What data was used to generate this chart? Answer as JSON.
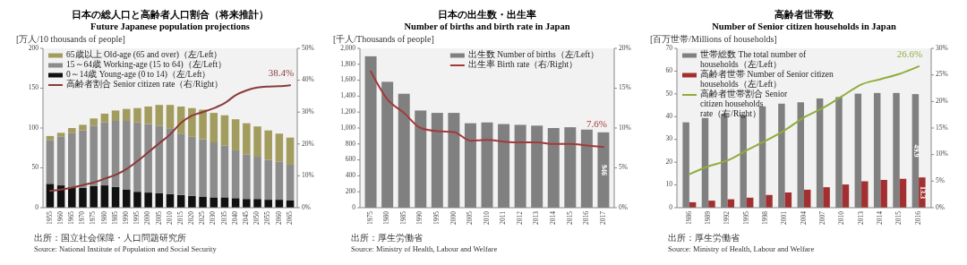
{
  "chart_data": [
    {
      "type": "bar",
      "title": "日本の総人口と高齢者人口割合（将来推計）",
      "subtitle": "Future Japanese population projections",
      "ylabel": "[万人/10 thousands of people]",
      "categories": [
        "1955",
        "1960",
        "1965",
        "1970",
        "1975",
        "1980",
        "1985",
        "1990",
        "1995",
        "2000",
        "2005",
        "2010",
        "2015",
        "2020",
        "2025",
        "2030",
        "2035",
        "2040",
        "2045",
        "2050",
        "2055",
        "2060",
        "2065"
      ],
      "stacked": true,
      "legend": "top left",
      "series": [
        {
          "name": "0～14歳 Young-age (0 to 14)（左/Left）",
          "color": "#111111",
          "values": [
            30,
            28,
            26,
            25,
            27,
            28,
            26,
            23,
            20,
            19,
            18,
            17,
            16,
            15,
            14,
            13,
            13,
            12,
            11,
            11,
            10,
            10,
            9
          ]
        },
        {
          "name": "15～64歳 Working-age (15 to 64)（左/Left）",
          "color": "#8c8c8c",
          "values": [
            55,
            61,
            68,
            72,
            76,
            79,
            83,
            86,
            87,
            86,
            85,
            82,
            77,
            74,
            72,
            69,
            65,
            60,
            56,
            53,
            50,
            48,
            45
          ]
        },
        {
          "name": "65歳以上 Old-age (65 and over)（左/Left）",
          "color": "#a39c5f",
          "values": [
            5,
            5,
            6,
            7,
            9,
            11,
            13,
            15,
            18,
            22,
            26,
            30,
            34,
            36,
            37,
            37,
            38,
            39,
            39,
            38,
            37,
            35,
            34
          ]
        },
        {
          "name": "高齢者割合 Senior citizen rate（右/Right）",
          "type": "line",
          "axis": "y2",
          "color": "#8b3a3a",
          "values": [
            5.3,
            5.7,
            6.3,
            7.1,
            7.9,
            9.1,
            10.3,
            12.1,
            14.6,
            17.4,
            20.2,
            23.0,
            26.6,
            28.9,
            30.0,
            31.2,
            32.8,
            35.3,
            36.8,
            37.7,
            38.0,
            38.1,
            38.4
          ],
          "value_labels": [
            null,
            null,
            null,
            null,
            null,
            null,
            null,
            null,
            null,
            null,
            null,
            null,
            null,
            null,
            null,
            null,
            null,
            null,
            null,
            null,
            null,
            null,
            "38.4%"
          ]
        }
      ],
      "ylim": [
        0,
        200
      ],
      "yticks": [
        0,
        50,
        100,
        150,
        200
      ],
      "y2lim": [
        0,
        50
      ],
      "y2ticks": [
        {
          "value": 0,
          "label": "0%"
        },
        {
          "value": 10,
          "label": "10%"
        },
        {
          "value": 20,
          "label": "20%"
        },
        {
          "value": 30,
          "label": "30%"
        },
        {
          "value": 40,
          "label": "40%"
        },
        {
          "value": 50,
          "label": "50%"
        }
      ],
      "annotations": [
        "出所：国立社会保障・人口問題研究所",
        "Source: National Institute of Population and Social Security"
      ]
    },
    {
      "type": "bar",
      "title": "日本の出生数・出生率",
      "subtitle": "Number of births and birth rate in Japan",
      "ylabel": "[千人/Thousands of people]",
      "categories": [
        "1975",
        "1980",
        "1985",
        "1990",
        "1995",
        "2000",
        "2005",
        "2010",
        "2011",
        "2012",
        "2013",
        "2014",
        "2015",
        "2016",
        "2017"
      ],
      "legend": "top right",
      "series": [
        {
          "name": "出生数 Number of births（左/Left）",
          "color": "#808080",
          "values": [
            1900,
            1580,
            1430,
            1220,
            1190,
            1190,
            1060,
            1070,
            1050,
            1040,
            1030,
            1000,
            1010,
            980,
            946
          ],
          "value_labels": [
            null,
            null,
            null,
            null,
            null,
            null,
            null,
            null,
            null,
            null,
            null,
            null,
            null,
            null,
            "946"
          ]
        },
        {
          "name": "出生率 Birth rate（右/Right）",
          "type": "line",
          "axis": "y2",
          "color": "#a33a3a",
          "values": [
            17.1,
            13.6,
            11.9,
            10.0,
            9.6,
            9.5,
            8.4,
            8.5,
            8.3,
            8.2,
            8.2,
            8.0,
            8.0,
            7.8,
            7.6
          ],
          "value_labels": [
            null,
            null,
            null,
            null,
            null,
            null,
            null,
            null,
            null,
            null,
            null,
            null,
            null,
            null,
            "7.6%"
          ]
        }
      ],
      "ylim": [
        0,
        2000
      ],
      "yticks": [
        0,
        200,
        400,
        600,
        800,
        {
          "value": 1000,
          "label": "1,000"
        },
        {
          "value": 1200,
          "label": "1,200"
        },
        {
          "value": 1400,
          "label": "1,400"
        },
        {
          "value": 1600,
          "label": "1,600"
        },
        {
          "value": 1800,
          "label": "1,800"
        },
        {
          "value": 2000,
          "label": "2,000"
        }
      ],
      "y2lim": [
        0,
        20
      ],
      "y2ticks": [
        {
          "value": 0,
          "label": "0%"
        },
        {
          "value": 5,
          "label": "5%"
        },
        {
          "value": 10,
          "label": "10%"
        },
        {
          "value": 15,
          "label": "15%"
        },
        {
          "value": 20,
          "label": "20%"
        }
      ],
      "annotations": [
        "出所：厚生労働省",
        "Source: Ministry of Health, Labour and Welfare"
      ]
    },
    {
      "type": "bar",
      "title": "高齢者世帯数",
      "subtitle": "Number of Senior citizen households in Japan",
      "ylabel": "[百万世帯/Millions of households]",
      "categories": [
        "1986",
        "1989",
        "1992",
        "1995",
        "1998",
        "2001",
        "2004",
        "2007",
        "2010",
        "2013",
        "2014",
        "2015",
        "2016"
      ],
      "legend": "top left",
      "series": [
        {
          "name": "世帯総数 The total number of households（左/Left）",
          "color": "#808080",
          "values": [
            37.5,
            39.4,
            41.2,
            40.8,
            44.5,
            45.7,
            46.3,
            48.0,
            48.6,
            50.1,
            50.4,
            50.4,
            49.9
          ],
          "value_labels": [
            null,
            null,
            null,
            null,
            null,
            null,
            null,
            null,
            null,
            null,
            null,
            null,
            "49.9"
          ]
        },
        {
          "name": "高齢者世帯 Number of Senior citizen households（左/Left）",
          "color": "#a33030",
          "values": [
            2.4,
            3.1,
            3.7,
            4.4,
            5.6,
            6.7,
            7.9,
            9.0,
            10.2,
            11.6,
            12.2,
            12.7,
            13.3
          ],
          "value_labels": [
            null,
            null,
            null,
            null,
            null,
            null,
            null,
            null,
            null,
            null,
            null,
            null,
            "13.3"
          ]
        },
        {
          "name": "高齢者世帯割合 Senior citizen households rate（右/Right）",
          "type": "line",
          "axis": "y2",
          "color": "#8fad3a",
          "values": [
            6.3,
            7.8,
            8.9,
            10.8,
            12.6,
            14.6,
            17.0,
            18.8,
            21.0,
            23.2,
            24.2,
            25.2,
            26.6
          ],
          "value_labels": [
            null,
            null,
            null,
            null,
            null,
            null,
            null,
            null,
            null,
            null,
            null,
            null,
            "26.6%"
          ]
        }
      ],
      "ylim": [
        0,
        70
      ],
      "yticks": [
        0,
        10,
        20,
        30,
        40,
        50,
        60,
        70
      ],
      "y2lim": [
        0,
        30
      ],
      "y2ticks": [
        {
          "value": 0,
          "label": "0%"
        },
        {
          "value": 5,
          "label": "5%"
        },
        {
          "value": 10,
          "label": "10%"
        },
        {
          "value": 15,
          "label": "15%"
        },
        {
          "value": 20,
          "label": "20%"
        },
        {
          "value": 25,
          "label": "25%"
        },
        {
          "value": 30,
          "label": "30%"
        }
      ],
      "annotations": [
        "出所：厚生労働省",
        "Source: Ministry of Health, Labour and Welfare"
      ]
    }
  ]
}
